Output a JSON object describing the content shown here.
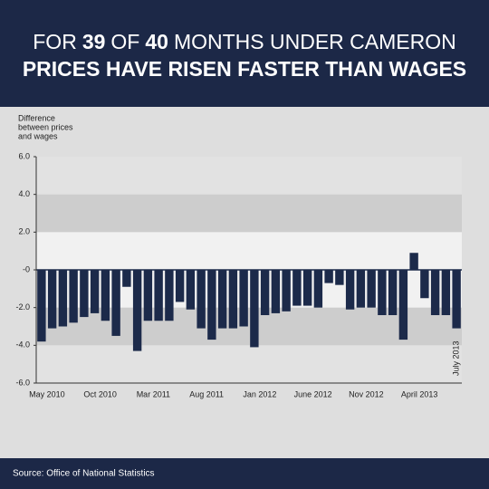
{
  "chart_data": {
    "type": "bar",
    "title": [
      "FOR",
      "39",
      "OF",
      "40",
      "MONTHS UNDER CAMERON"
    ],
    "subtitle": "PRICES HAVE RISEN FASTER THAN WAGES",
    "y_label": [
      "Difference",
      "between prices",
      "and wages"
    ],
    "source": "Source: Office of National Statistics",
    "categories": [
      "May 2010",
      null,
      null,
      null,
      null,
      "Oct 2010",
      null,
      null,
      null,
      null,
      "Mar 2011",
      null,
      null,
      null,
      null,
      "Aug 2011",
      null,
      null,
      null,
      null,
      "Jan 2012",
      null,
      null,
      null,
      null,
      "June 2012",
      null,
      null,
      null,
      null,
      "Nov 2012",
      null,
      null,
      null,
      null,
      "April 2013",
      null,
      null,
      "July 2013",
      null
    ],
    "values": [
      -3.8,
      -3.1,
      -3.0,
      -2.8,
      -2.5,
      -2.3,
      -2.7,
      -3.5,
      -0.9,
      -4.3,
      -2.7,
      -2.7,
      -2.7,
      -1.7,
      -2.1,
      -3.1,
      -3.7,
      -3.1,
      -3.1,
      -3.0,
      -4.1,
      -2.4,
      -2.3,
      -2.2,
      -1.9,
      -1.9,
      -2.0,
      -0.7,
      -0.8,
      -2.1,
      -2.0,
      -2.0,
      -2.4,
      -2.4,
      -3.7,
      0.9,
      -1.5,
      -2.4,
      -2.4,
      -3.1
    ],
    "color": "#1c2a4a",
    "ylim": [
      -6,
      6
    ],
    "yticks": [
      {
        "value": 6,
        "label": "6.0"
      },
      {
        "value": 4,
        "label": "4.0"
      },
      {
        "value": 2,
        "label": "2.0"
      },
      {
        "value": 0,
        "label": "-0"
      },
      {
        "value": -2,
        "label": "-2.0"
      },
      {
        "value": -4,
        "label": "-4.0"
      },
      {
        "value": -6,
        "label": "-6.0"
      }
    ],
    "bands": [
      [
        2,
        4
      ],
      [
        -4,
        -2
      ]
    ],
    "grid": false
  }
}
